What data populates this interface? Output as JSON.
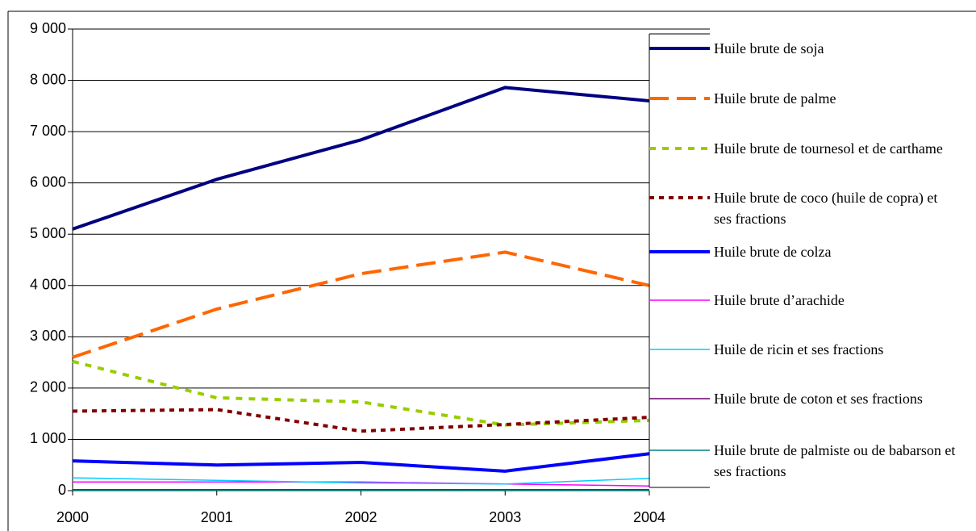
{
  "chart_data": {
    "type": "line",
    "categories": [
      "2000",
      "2001",
      "2002",
      "2003",
      "2004"
    ],
    "ylim": [
      0,
      9000
    ],
    "yticks": [
      0,
      {
        "value": 1000,
        "label": "1 000"
      },
      {
        "value": 2000,
        "label": "2 000"
      },
      {
        "value": 3000,
        "label": "3 000"
      },
      {
        "value": 4000,
        "label": "4 000"
      },
      {
        "value": 5000,
        "label": "5 000"
      },
      {
        "value": 6000,
        "label": "6 000"
      },
      {
        "value": 7000,
        "label": "7 000"
      },
      {
        "value": 8000,
        "label": "8 000"
      },
      {
        "value": 9000,
        "label": "9 000"
      }
    ],
    "grid": true,
    "legend": "right",
    "series": [
      {
        "name": "Huile brute de soja",
        "color": "#000080",
        "dash": "solid",
        "values": [
          5100,
          6070,
          6840,
          7860,
          7600
        ]
      },
      {
        "name": "Huile brute de palme",
        "color": "#ff6600",
        "dash": "long-dash",
        "values": [
          2600,
          3540,
          4230,
          4650,
          4000
        ]
      },
      {
        "name": "Huile brute de tournesol et de carthame",
        "color": "#99cc00",
        "dash": "dash",
        "values": [
          2520,
          1810,
          1730,
          1280,
          1370
        ]
      },
      {
        "name": "Huile brute de coco (huile de copra) et ses fractions",
        "color": "#800000",
        "dash": "dot",
        "values": [
          1550,
          1580,
          1160,
          1290,
          1430
        ]
      },
      {
        "name": "Huile brute de colza",
        "color": "#0000ff",
        "dash": "solid",
        "values": [
          580,
          500,
          550,
          380,
          720
        ]
      },
      {
        "name": "Huile brute d’arachide",
        "color": "#ff00ff",
        "dash": "thin",
        "values": [
          170,
          170,
          170,
          130,
          90
        ]
      },
      {
        "name": "Huile de ricin et ses fractions",
        "color": "#00ccff",
        "dash": "thin",
        "values": [
          250,
          200,
          150,
          130,
          240
        ]
      },
      {
        "name": "Huile brute de coton et ses fractions",
        "color": "#660066",
        "dash": "thin",
        "values": [
          20,
          20,
          20,
          20,
          20
        ]
      },
      {
        "name": "Huile brute de palmiste ou de babarson et ses fractions",
        "color": "#008080",
        "dash": "thin",
        "values": [
          10,
          10,
          10,
          10,
          10
        ]
      }
    ]
  }
}
